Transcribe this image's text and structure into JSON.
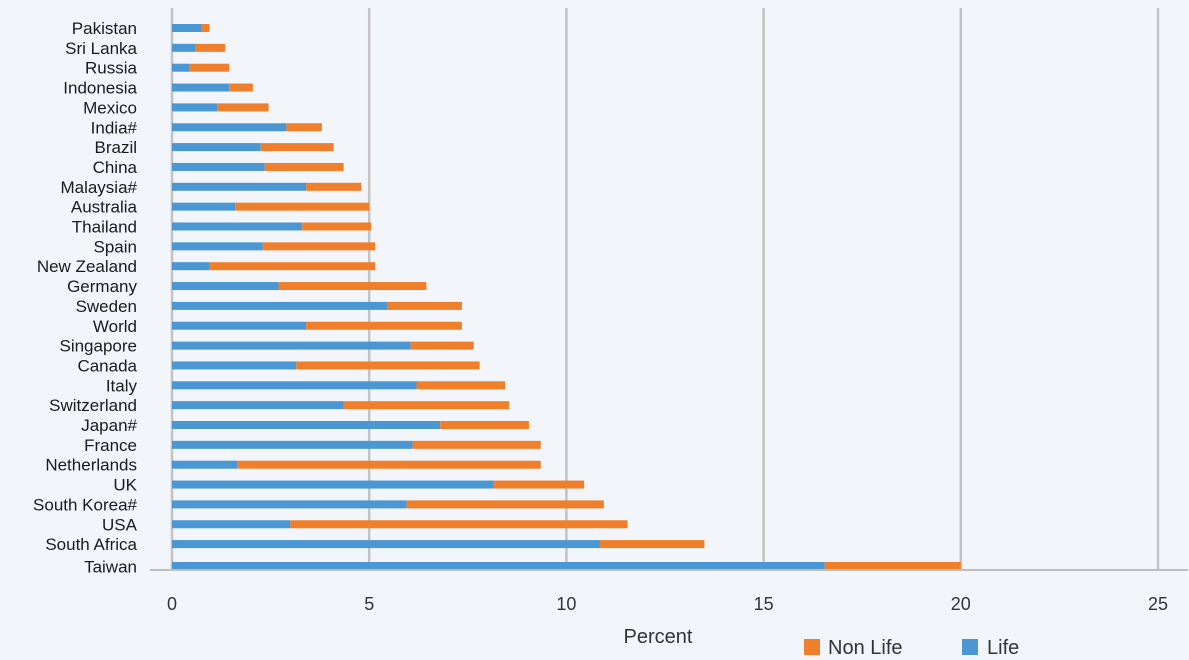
{
  "chart_data": {
    "type": "bar",
    "orientation": "horizontal",
    "stacked": true,
    "categories": [
      "Pakistan",
      "Sri Lanka",
      "Russia",
      "Indonesia",
      "Mexico",
      "India#",
      "Brazil",
      "China",
      "Malaysia#",
      "Australia",
      "Thailand",
      "Spain",
      "New Zealand",
      "Germany",
      "Sweden",
      "World",
      "Singapore",
      "Canada",
      "Italy",
      "Switzerland",
      "Japan#",
      "France",
      "Netherlands",
      "UK",
      "South Korea#",
      "USA",
      "South Africa",
      "Taiwan"
    ],
    "series": [
      {
        "name": "Life",
        "color": "#4a97d3",
        "values": [
          0.75,
          0.6,
          0.45,
          1.45,
          1.15,
          2.9,
          2.25,
          2.35,
          3.4,
          1.6,
          3.3,
          2.3,
          0.95,
          2.7,
          5.45,
          3.4,
          6.05,
          3.15,
          6.2,
          4.35,
          6.8,
          6.1,
          1.65,
          8.15,
          5.95,
          3.0,
          10.85,
          16.55
        ]
      },
      {
        "name": "Non Life",
        "color": "#f07f2b",
        "values": [
          0.2,
          0.75,
          1.0,
          0.6,
          1.3,
          0.9,
          1.85,
          2.0,
          1.4,
          3.4,
          1.75,
          2.85,
          4.2,
          3.75,
          1.9,
          3.95,
          1.6,
          4.65,
          2.25,
          4.2,
          2.25,
          3.25,
          7.7,
          2.3,
          5.0,
          8.55,
          2.65,
          3.45
        ]
      }
    ],
    "xlabel": "Percent",
    "xlim": [
      0,
      25
    ],
    "xticks": [
      0,
      5,
      10,
      15,
      20,
      25
    ],
    "grid": true,
    "legend_position": "bottom"
  }
}
